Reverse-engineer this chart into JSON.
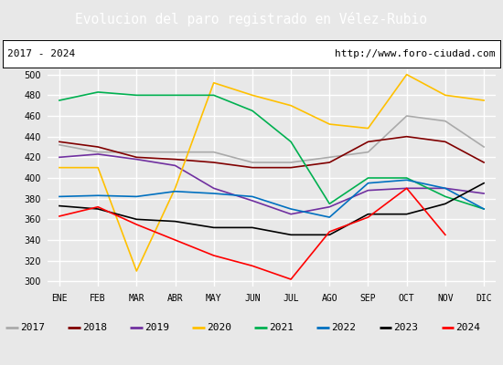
{
  "title": "Evolucion del paro registrado en Vélez-Rubio",
  "subtitle_left": "2017 - 2024",
  "subtitle_right": "http://www.foro-ciudad.com",
  "title_bg": "#4472c4",
  "title_color": "#ffffff",
  "months": [
    "ENE",
    "FEB",
    "MAR",
    "ABR",
    "MAY",
    "JUN",
    "JUL",
    "AGO",
    "SEP",
    "OCT",
    "NOV",
    "DIC"
  ],
  "ylim": [
    295,
    505
  ],
  "yticks": [
    300,
    320,
    340,
    360,
    380,
    400,
    420,
    440,
    460,
    480,
    500
  ],
  "series": {
    "2017": {
      "color": "#aaaaaa",
      "values": [
        432,
        425,
        425,
        425,
        425,
        415,
        415,
        420,
        425,
        460,
        455,
        430
      ]
    },
    "2018": {
      "color": "#800000",
      "values": [
        435,
        430,
        420,
        418,
        415,
        410,
        410,
        415,
        435,
        440,
        435,
        415
      ]
    },
    "2019": {
      "color": "#7030a0",
      "values": [
        420,
        423,
        418,
        412,
        390,
        378,
        365,
        372,
        388,
        390,
        390,
        385
      ]
    },
    "2020": {
      "color": "#ffc000",
      "values": [
        410,
        410,
        310,
        390,
        492,
        480,
        470,
        452,
        448,
        500,
        480,
        475
      ]
    },
    "2021": {
      "color": "#00b050",
      "values": [
        475,
        483,
        480,
        480,
        480,
        465,
        435,
        375,
        400,
        400,
        382,
        370
      ]
    },
    "2022": {
      "color": "#0070c0",
      "values": [
        382,
        383,
        382,
        387,
        385,
        382,
        370,
        362,
        395,
        398,
        390,
        370
      ]
    },
    "2023": {
      "color": "#000000",
      "values": [
        373,
        370,
        360,
        358,
        352,
        352,
        345,
        345,
        365,
        365,
        375,
        395
      ]
    },
    "2024": {
      "color": "#ff0000",
      "values": [
        363,
        372,
        355,
        340,
        325,
        315,
        302,
        348,
        362,
        390,
        345,
        null
      ]
    }
  },
  "bg_color": "#e8e8e8",
  "plot_bg": "#e8e8e8",
  "grid_color": "#ffffff",
  "legend_order": [
    "2017",
    "2018",
    "2019",
    "2020",
    "2021",
    "2022",
    "2023",
    "2024"
  ]
}
